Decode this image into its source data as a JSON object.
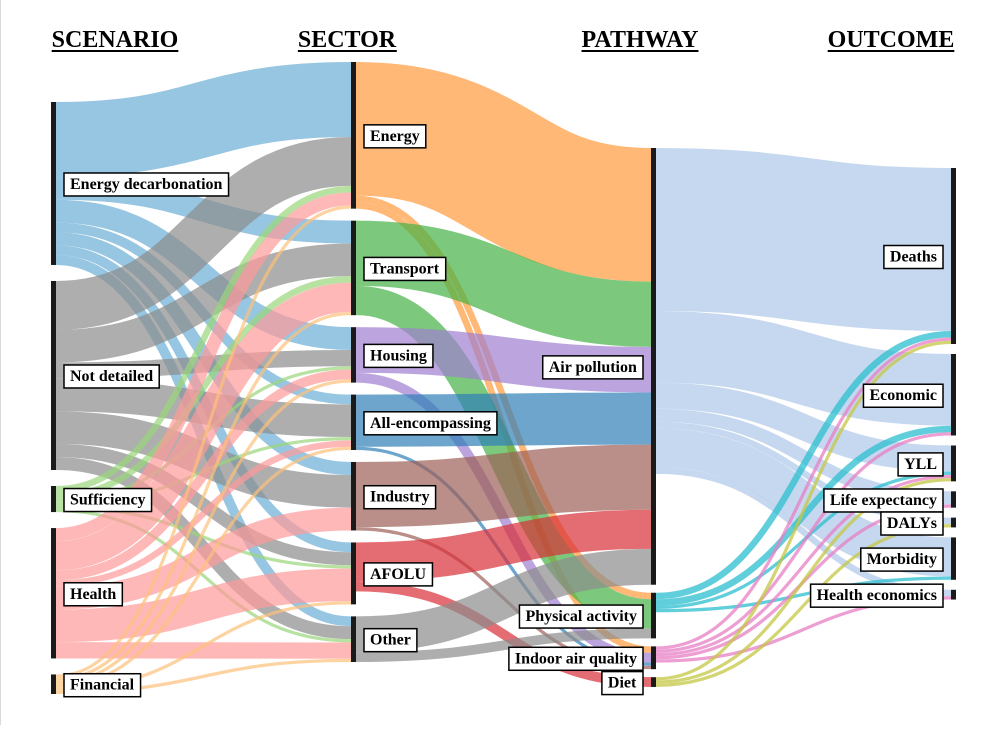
{
  "chart_data": {
    "type": "sankey",
    "columns": [
      {
        "key": "scenario",
        "title": "SCENARIO"
      },
      {
        "key": "sector",
        "title": "SECTOR"
      },
      {
        "key": "pathway",
        "title": "PATHWAY"
      },
      {
        "key": "outcome",
        "title": "OUTCOME"
      }
    ],
    "nodes": [
      {
        "id": "s_energy",
        "label": "Energy decarbonation",
        "column": "scenario",
        "color": "#6baed6"
      },
      {
        "id": "s_notdet",
        "label": "Not detailed",
        "column": "scenario",
        "color": "#8c8c8c"
      },
      {
        "id": "s_suff",
        "label": "Sufficiency",
        "column": "scenario",
        "color": "#9ad67a"
      },
      {
        "id": "s_health",
        "label": "Health",
        "column": "scenario",
        "color": "#ff9a9a"
      },
      {
        "id": "s_fin",
        "label": "Financial",
        "column": "scenario",
        "color": "#fdc07a"
      },
      {
        "id": "t_energy",
        "label": "Energy",
        "column": "sector",
        "color": "#ff9a3c"
      },
      {
        "id": "t_transport",
        "label": "Transport",
        "column": "sector",
        "color": "#45b045"
      },
      {
        "id": "t_housing",
        "label": "Housing",
        "column": "sector",
        "color": "#9f7fd0"
      },
      {
        "id": "t_allenc",
        "label": "All-encompassing",
        "column": "sector",
        "color": "#2f7fb8"
      },
      {
        "id": "t_industry",
        "label": "Industry",
        "column": "sector",
        "color": "#9c5f57"
      },
      {
        "id": "t_afolu",
        "label": "AFOLU",
        "column": "sector",
        "color": "#d92f37"
      },
      {
        "id": "t_other",
        "label": "Other",
        "column": "sector",
        "color": "#8c8c8c"
      },
      {
        "id": "p_air",
        "label": "Air pollution",
        "column": "pathway",
        "color": "#b3cbeb"
      },
      {
        "id": "p_phys",
        "label": "Physical activity",
        "column": "pathway",
        "color": "#2bbfcf"
      },
      {
        "id": "p_indoor",
        "label": "Indoor air quality",
        "column": "pathway",
        "color": "#e77fc6"
      },
      {
        "id": "p_diet",
        "label": "Diet",
        "column": "pathway",
        "color": "#c4c743"
      },
      {
        "id": "o_deaths",
        "label": "Deaths",
        "column": "outcome"
      },
      {
        "id": "o_econ",
        "label": "Economic",
        "column": "outcome"
      },
      {
        "id": "o_yll",
        "label": "YLL",
        "column": "outcome"
      },
      {
        "id": "o_life",
        "label": "Life expectancy",
        "column": "outcome"
      },
      {
        "id": "o_dalys",
        "label": "DALYs",
        "column": "outcome"
      },
      {
        "id": "o_morb",
        "label": "Morbidity",
        "column": "outcome"
      },
      {
        "id": "o_hecon",
        "label": "Health economics",
        "column": "outcome"
      }
    ],
    "links": [
      {
        "source": "s_energy",
        "target": "t_energy",
        "value": 23
      },
      {
        "source": "s_energy",
        "target": "t_transport",
        "value": 7
      },
      {
        "source": "s_energy",
        "target": "t_housing",
        "value": 7
      },
      {
        "source": "s_energy",
        "target": "t_allenc",
        "value": 3
      },
      {
        "source": "s_energy",
        "target": "t_industry",
        "value": 4
      },
      {
        "source": "s_energy",
        "target": "t_afolu",
        "value": 3
      },
      {
        "source": "s_energy",
        "target": "t_other",
        "value": 3
      },
      {
        "source": "s_notdet",
        "target": "t_energy",
        "value": 15
      },
      {
        "source": "s_notdet",
        "target": "t_transport",
        "value": 10
      },
      {
        "source": "s_notdet",
        "target": "t_housing",
        "value": 5
      },
      {
        "source": "s_notdet",
        "target": "t_allenc",
        "value": 10
      },
      {
        "source": "s_notdet",
        "target": "t_industry",
        "value": 10
      },
      {
        "source": "s_notdet",
        "target": "t_afolu",
        "value": 4
      },
      {
        "source": "s_notdet",
        "target": "t_other",
        "value": 4
      },
      {
        "source": "s_suff",
        "target": "t_energy",
        "value": 2
      },
      {
        "source": "s_suff",
        "target": "t_transport",
        "value": 2
      },
      {
        "source": "s_suff",
        "target": "t_housing",
        "value": 1
      },
      {
        "source": "s_suff",
        "target": "t_allenc",
        "value": 1
      },
      {
        "source": "s_suff",
        "target": "t_afolu",
        "value": 1
      },
      {
        "source": "s_suff",
        "target": "t_other",
        "value": 1
      },
      {
        "source": "s_health",
        "target": "t_energy",
        "value": 4
      },
      {
        "source": "s_health",
        "target": "t_transport",
        "value": 9
      },
      {
        "source": "s_health",
        "target": "t_housing",
        "value": 3
      },
      {
        "source": "s_health",
        "target": "t_allenc",
        "value": 2
      },
      {
        "source": "s_health",
        "target": "t_industry",
        "value": 7
      },
      {
        "source": "s_health",
        "target": "t_afolu",
        "value": 10
      },
      {
        "source": "s_health",
        "target": "t_other",
        "value": 5
      },
      {
        "source": "s_fin",
        "target": "t_energy",
        "value": 1
      },
      {
        "source": "s_fin",
        "target": "t_transport",
        "value": 1
      },
      {
        "source": "s_fin",
        "target": "t_housing",
        "value": 1
      },
      {
        "source": "s_fin",
        "target": "t_allenc",
        "value": 1
      },
      {
        "source": "s_fin",
        "target": "t_afolu",
        "value": 1
      },
      {
        "source": "s_fin",
        "target": "t_other",
        "value": 1
      },
      {
        "source": "t_energy",
        "target": "p_air",
        "value": 41
      },
      {
        "source": "t_energy",
        "target": "p_phys",
        "value": 2
      },
      {
        "source": "t_energy",
        "target": "p_indoor",
        "value": 2
      },
      {
        "source": "t_transport",
        "target": "p_air",
        "value": 20
      },
      {
        "source": "t_transport",
        "target": "p_phys",
        "value": 9
      },
      {
        "source": "t_housing",
        "target": "p_air",
        "value": 14
      },
      {
        "source": "t_housing",
        "target": "p_indoor",
        "value": 3
      },
      {
        "source": "t_allenc",
        "target": "p_air",
        "value": 16
      },
      {
        "source": "t_allenc",
        "target": "p_indoor",
        "value": 1
      },
      {
        "source": "t_industry",
        "target": "p_air",
        "value": 20
      },
      {
        "source": "t_industry",
        "target": "p_indoor",
        "value": 1
      },
      {
        "source": "t_afolu",
        "target": "p_air",
        "value": 12
      },
      {
        "source": "t_afolu",
        "target": "p_diet",
        "value": 3
      },
      {
        "source": "t_other",
        "target": "p_air",
        "value": 11
      },
      {
        "source": "t_other",
        "target": "p_phys",
        "value": 3
      },
      {
        "source": "p_air",
        "target": "o_deaths",
        "value": 50
      },
      {
        "source": "p_air",
        "target": "o_econ",
        "value": 22
      },
      {
        "source": "p_air",
        "target": "o_yll",
        "value": 8
      },
      {
        "source": "p_air",
        "target": "o_life",
        "value": 4
      },
      {
        "source": "p_air",
        "target": "o_dalys",
        "value": 2
      },
      {
        "source": "p_air",
        "target": "o_morb",
        "value": 12
      },
      {
        "source": "p_air",
        "target": "o_hecon",
        "value": 2
      },
      {
        "source": "p_phys",
        "target": "o_deaths",
        "value": 2
      },
      {
        "source": "p_phys",
        "target": "o_econ",
        "value": 2
      },
      {
        "source": "p_phys",
        "target": "o_yll",
        "value": 1
      },
      {
        "source": "p_phys",
        "target": "o_morb",
        "value": 1
      },
      {
        "source": "p_indoor",
        "target": "o_deaths",
        "value": 1
      },
      {
        "source": "p_indoor",
        "target": "o_econ",
        "value": 1
      },
      {
        "source": "p_indoor",
        "target": "o_yll",
        "value": 1
      },
      {
        "source": "p_indoor",
        "target": "o_life",
        "value": 1
      },
      {
        "source": "p_indoor",
        "target": "o_hecon",
        "value": 1
      },
      {
        "source": "p_diet",
        "target": "o_deaths",
        "value": 1
      },
      {
        "source": "p_diet",
        "target": "o_yll",
        "value": 1
      },
      {
        "source": "p_diet",
        "target": "o_dalys",
        "value": 1
      }
    ]
  }
}
